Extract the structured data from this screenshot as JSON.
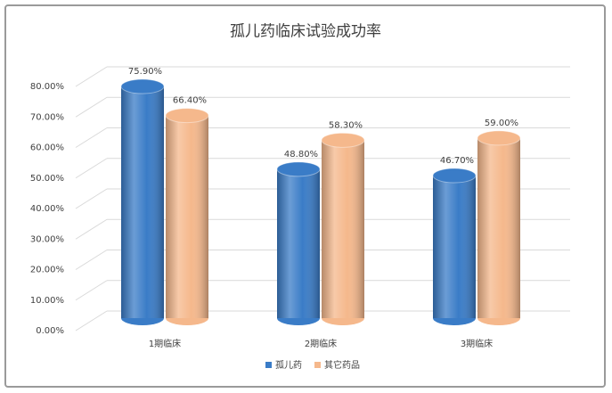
{
  "chart_data": {
    "type": "bar3d-cylinder",
    "title": "孤儿药临床试验成功率",
    "categories": [
      "1期临床",
      "2期临床",
      "3期临床"
    ],
    "series": [
      {
        "name": "孤儿药",
        "color": "#3a7cc7",
        "values": [
          75.9,
          48.8,
          46.7
        ],
        "value_labels": [
          "75.90%",
          "48.80%",
          "46.70%"
        ]
      },
      {
        "name": "其它药品",
        "color": "#f5b88c",
        "values": [
          66.4,
          58.3,
          59.0
        ],
        "value_labels": [
          "66.40%",
          "58.30%",
          "59.00%"
        ]
      }
    ],
    "ylim": [
      0,
      80
    ],
    "yticks": [
      {
        "value": 0,
        "label": "0.00%"
      },
      {
        "value": 10,
        "label": "10.00%"
      },
      {
        "value": 20,
        "label": "20.00%"
      },
      {
        "value": 30,
        "label": "30.00%"
      },
      {
        "value": 40,
        "label": "40.00%"
      },
      {
        "value": 50,
        "label": "50.00%"
      },
      {
        "value": 60,
        "label": "60.00%"
      },
      {
        "value": 70,
        "label": "70.00%"
      },
      {
        "value": 80,
        "label": "80.00%"
      }
    ],
    "grid": true,
    "legend": "bottom"
  }
}
